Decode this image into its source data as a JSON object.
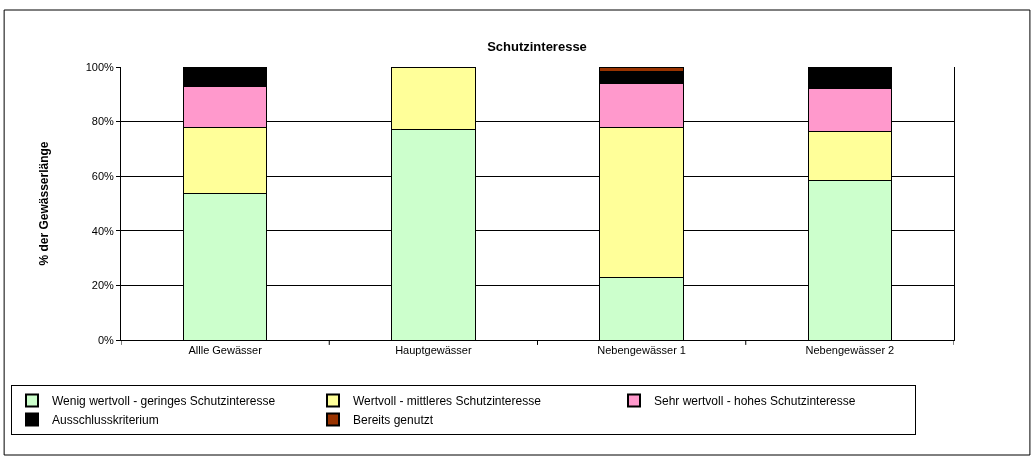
{
  "chart_data": {
    "type": "bar",
    "stacked": true,
    "title": "Schutzinteresse",
    "ylabel": "% der Gewässerlänge",
    "categories": [
      "Allle Gewässer",
      "Hauptgewässer",
      "Nebengewässer 1",
      "Nebengewässer 2"
    ],
    "series": [
      {
        "name": "Wenig wertvoll - geringes Schutzinteresse",
        "color": "#ccffcc",
        "values": [
          53.8,
          77,
          22.9,
          58.4
        ]
      },
      {
        "name": "Wertvoll - mittleres Schutzinteresse",
        "color": "#ffff99",
        "values": [
          24.1,
          23,
          55,
          18
        ]
      },
      {
        "name": "Sehr wertvoll - hohes Schutzinteresse",
        "color": "#ff99cc",
        "values": [
          14.8,
          null,
          16,
          15.7
        ]
      },
      {
        "name": "Ausschlusskriterium",
        "color": "#000000",
        "values": [
          6.9,
          null,
          4.3,
          7.5
        ]
      },
      {
        "name": "Bereits genutzt",
        "color": "#993300",
        "values": [
          0.4,
          null,
          1.8,
          0.4
        ]
      }
    ],
    "ylim": [
      0,
      100
    ],
    "yticks": [
      {
        "value": 0,
        "label": "0%"
      },
      {
        "value": 20,
        "label": "20%"
      },
      {
        "value": 40,
        "label": "40%"
      },
      {
        "value": 60,
        "label": "60%"
      },
      {
        "value": 80,
        "label": "80%"
      },
      {
        "value": 100,
        "label": "100%"
      }
    ],
    "grid": "y",
    "legend": "bottom"
  }
}
